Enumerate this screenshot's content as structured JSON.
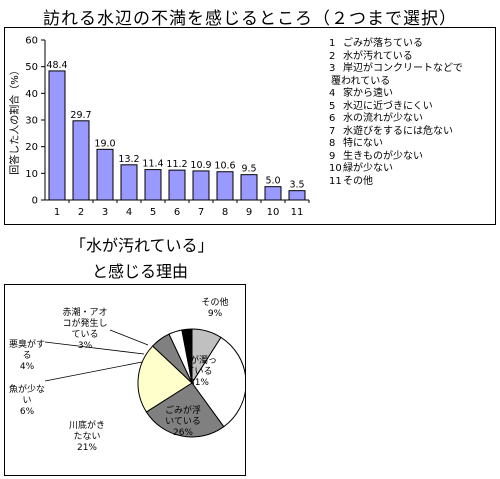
{
  "main_title": "訪れる水辺の不満を感じるところ（２つまで選択）",
  "pie_title_line1": "「水が汚れている」",
  "pie_title_line2": "と感じる理由",
  "colors": {
    "bar": "#9999ff",
    "pie_1": "#ffffff",
    "pie_2": "#ffffcc",
    "pie_3": "#808080",
    "pie_4": "#c0c0c0",
    "pie_5": "#000000"
  },
  "chart_data": [
    {
      "type": "bar",
      "ylabel": "回答した人の割合（%）",
      "ylim": [
        0,
        60
      ],
      "yticks": [
        0,
        10,
        20,
        30,
        40,
        50,
        60
      ],
      "categories": [
        "1",
        "2",
        "3",
        "4",
        "5",
        "6",
        "7",
        "8",
        "9",
        "10",
        "11"
      ],
      "values": [
        48.4,
        29.7,
        19.0,
        13.2,
        11.4,
        11.2,
        10.9,
        10.6,
        9.5,
        5.0,
        3.5
      ],
      "value_labels": [
        "48.4",
        "29.7",
        "19.0",
        "13.2",
        "11.4",
        "11.2",
        "10.9",
        "10.6",
        "9.5",
        "5.0",
        "3.5"
      ],
      "legend": [
        {
          "num": "1",
          "text": "ごみが落ちている"
        },
        {
          "num": "2",
          "text": "水が汚れている"
        },
        {
          "num": "3",
          "text": "岸辺がコンクリートなどで",
          "cont": "覆われている"
        },
        {
          "num": "4",
          "text": "家から遠い"
        },
        {
          "num": "5",
          "text": "水辺に近づきにくい"
        },
        {
          "num": "6",
          "text": "水の流れが少ない"
        },
        {
          "num": "7",
          "text": "水遊びをするには危ない"
        },
        {
          "num": "8",
          "text": "特にない"
        },
        {
          "num": "9",
          "text": "生きものが少ない"
        },
        {
          "num": "10",
          "text": "緑が少ない"
        },
        {
          "num": "11",
          "text": "その他"
        }
      ]
    },
    {
      "type": "pie",
      "slices": [
        {
          "label": "その他",
          "value": 9,
          "value_label": "9%",
          "color": "#c0c0c0"
        },
        {
          "label": "水が濁っている",
          "value": 31,
          "value_label": "31%",
          "color": "#ffffff"
        },
        {
          "label": "ごみが浮いている",
          "value": 26,
          "value_label": "26%",
          "color": "#808080"
        },
        {
          "label": "川底がきたない",
          "value": 21,
          "value_label": "21%",
          "color": "#ffffcc"
        },
        {
          "label": "魚が少ない",
          "value": 6,
          "value_label": "6%",
          "color": "#808080"
        },
        {
          "label": "悪臭がする",
          "value": 4,
          "value_label": "4%",
          "color": "#ffffff"
        },
        {
          "label": "赤潮・アオコが発生している",
          "value": 3,
          "value_label": "3%",
          "color": "#000000"
        }
      ]
    }
  ]
}
